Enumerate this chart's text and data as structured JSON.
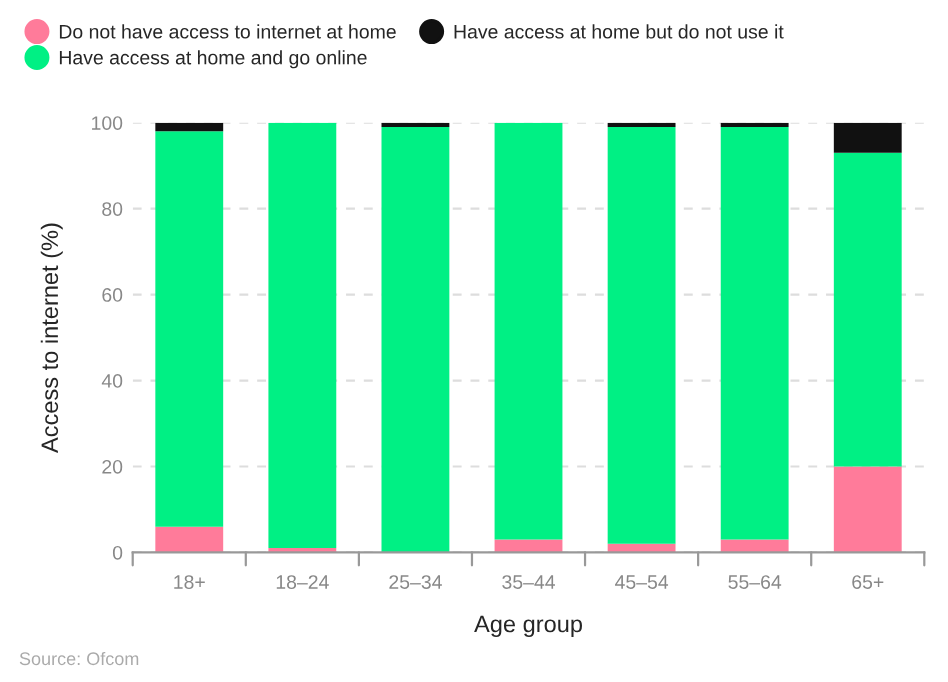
{
  "chart_data": {
    "type": "bar",
    "stacked": true,
    "xlabel": "Age group",
    "ylabel": "Access to internet (%)",
    "categories": [
      "18+",
      "18–24",
      "25–34",
      "35–44",
      "45–54",
      "55–64",
      "65+"
    ],
    "series": [
      {
        "name": "Do not have access to internet at home",
        "color": "#ff7b9a",
        "values": [
          6,
          1,
          0,
          3,
          2,
          3,
          20
        ]
      },
      {
        "name": "Have access at home and go online",
        "color": "#00f084",
        "values": [
          92,
          99,
          99,
          97,
          97,
          96,
          73
        ]
      },
      {
        "name": "Have access at home but do not use it",
        "color": "#111111",
        "values": [
          2,
          0,
          1,
          0,
          1,
          1,
          7
        ]
      }
    ],
    "ylim": [
      0,
      100
    ],
    "yticks": [
      0,
      20,
      40,
      60,
      80,
      100
    ],
    "grid": "y",
    "legend": "top left",
    "annotations": [
      "Source: Ofcom"
    ]
  }
}
